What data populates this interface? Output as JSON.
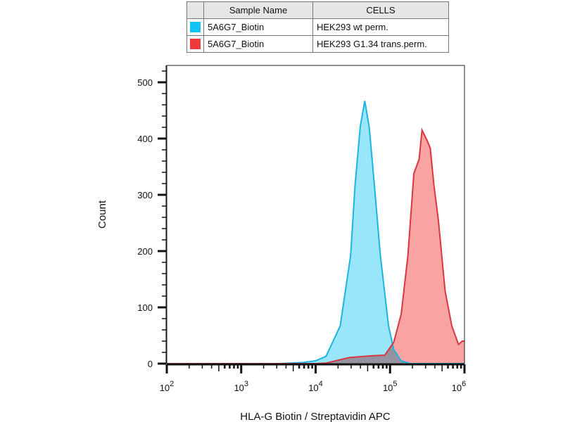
{
  "colors": {
    "blue_fill": "#99e6fb",
    "blue_line": "#1cb4e0",
    "red_fill": "#f9a3a3",
    "red_line": "#d9363e"
  },
  "legend": {
    "headers": [
      "",
      "Sample Name",
      "CELLS"
    ],
    "rows": [
      {
        "color": "#12c4f5",
        "sample": "5A6G7_Biotin",
        "cells": "HEK293 wt perm."
      },
      {
        "color": "#ee3a3a",
        "sample": "5A6G7_Biotin",
        "cells": "HEK293 G1.34 trans.perm."
      }
    ]
  },
  "chart_data": {
    "type": "area",
    "title": "",
    "xlabel": "HLA-G Biotin / Streptavidin APC",
    "ylabel": "Count",
    "xscale": "log",
    "xlim_log10": [
      2,
      6
    ],
    "ylim": [
      0,
      500
    ],
    "yticks": [
      0,
      100,
      200,
      300,
      400,
      500
    ],
    "xticks": [
      {
        "base": "10",
        "exp": "2"
      },
      {
        "base": "10",
        "exp": "3"
      },
      {
        "base": "10",
        "exp": "4"
      },
      {
        "base": "10",
        "exp": "5"
      },
      {
        "base": "10",
        "exp": "6"
      }
    ],
    "grid": false,
    "legend_position": "top",
    "series": [
      {
        "name": "5A6G7_Biotin HEK293 wt perm.",
        "color": "blue",
        "log10_x": [
          2.0,
          3.5,
          3.83,
          4.0,
          4.14,
          4.33,
          4.47,
          4.53,
          4.6,
          4.66,
          4.72,
          4.79,
          4.87,
          4.98,
          5.05,
          5.15,
          5.27,
          6.0
        ],
        "count": [
          0,
          0,
          2,
          5,
          13,
          67,
          192,
          317,
          421,
          467,
          421,
          317,
          192,
          67,
          25,
          5,
          0,
          0
        ]
      },
      {
        "name": "5A6G7_Biotin HEK293 G1.34 trans.perm.",
        "color": "red",
        "log10_x": [
          2.0,
          4.0,
          4.14,
          4.3,
          4.46,
          4.77,
          4.93,
          5.05,
          5.15,
          5.24,
          5.32,
          5.39,
          5.43,
          5.5,
          5.54,
          5.59,
          5.65,
          5.74,
          5.83,
          5.92,
          5.97,
          6.0
        ],
        "count": [
          0,
          0,
          1,
          6,
          11,
          14,
          15,
          38,
          88,
          192,
          338,
          363,
          415,
          396,
          383,
          317,
          254,
          129,
          67,
          34,
          40,
          40
        ]
      }
    ]
  }
}
